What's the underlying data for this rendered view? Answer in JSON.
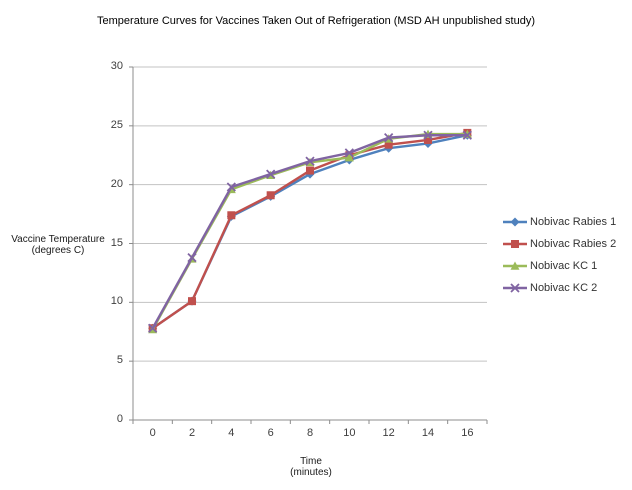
{
  "chart_data": {
    "type": "line",
    "title": "Temperature Curves for Vaccines Taken Out of Refrigeration (MSD AH unpublished study)",
    "ylabel_lines": [
      "Vaccine Temperature",
      "(degrees C)"
    ],
    "xlabel_lines": [
      "Time",
      "(minutes)"
    ],
    "categories": [
      0,
      2,
      4,
      6,
      8,
      10,
      12,
      14,
      16
    ],
    "y_ticks": [
      0,
      5,
      10,
      15,
      20,
      25,
      30
    ],
    "ylim": [
      0,
      30
    ],
    "grid": "horizontal",
    "legend_position": "right",
    "grid_color": "#c3c3c3",
    "axis_color": "#8c8c8c",
    "tick_text_color": "#3f3f3f",
    "series": [
      {
        "name": "Nobivac Rabies 1",
        "color": "#4F81BD",
        "marker": "diamond",
        "values": [
          7.8,
          10.1,
          17.3,
          19.0,
          20.9,
          22.1,
          23.1,
          23.5,
          24.2
        ]
      },
      {
        "name": "Nobivac Rabies 2",
        "color": "#C0504D",
        "marker": "square",
        "values": [
          7.8,
          10.1,
          17.4,
          19.1,
          21.2,
          22.5,
          23.4,
          23.8,
          24.4
        ]
      },
      {
        "name": "Nobivac KC 1",
        "color": "#9BBB59",
        "marker": "triangle",
        "values": [
          7.7,
          13.7,
          19.6,
          20.8,
          21.9,
          22.3,
          23.9,
          24.3,
          24.3
        ]
      },
      {
        "name": "Nobivac KC 2",
        "color": "#8064A2",
        "marker": "x",
        "values": [
          7.8,
          13.8,
          19.8,
          20.9,
          22.0,
          22.7,
          24.0,
          24.2,
          24.2
        ]
      }
    ]
  }
}
